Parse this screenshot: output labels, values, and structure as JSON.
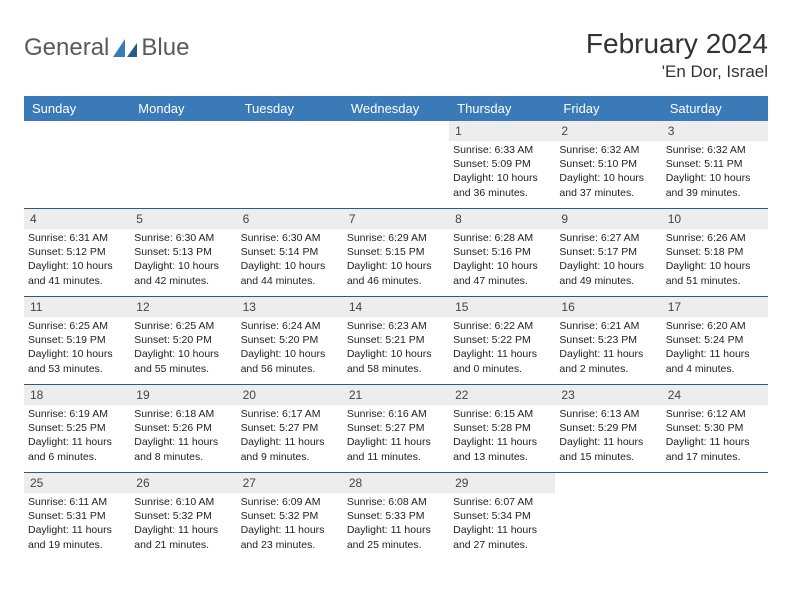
{
  "logo": {
    "word1": "General",
    "word2": "Blue"
  },
  "title": "February 2024",
  "location": "'En Dor, Israel",
  "colors": {
    "header_bg": "#3a7ab8",
    "header_text": "#ffffff",
    "daynum_bg": "#ededed",
    "border": "#2a5a8a",
    "text": "#222222",
    "page_bg": "#ffffff"
  },
  "weekdays": [
    "Sunday",
    "Monday",
    "Tuesday",
    "Wednesday",
    "Thursday",
    "Friday",
    "Saturday"
  ],
  "weeks": [
    [
      null,
      null,
      null,
      null,
      {
        "n": "1",
        "sunrise": "Sunrise: 6:33 AM",
        "sunset": "Sunset: 5:09 PM",
        "day1": "Daylight: 10 hours",
        "day2": "and 36 minutes."
      },
      {
        "n": "2",
        "sunrise": "Sunrise: 6:32 AM",
        "sunset": "Sunset: 5:10 PM",
        "day1": "Daylight: 10 hours",
        "day2": "and 37 minutes."
      },
      {
        "n": "3",
        "sunrise": "Sunrise: 6:32 AM",
        "sunset": "Sunset: 5:11 PM",
        "day1": "Daylight: 10 hours",
        "day2": "and 39 minutes."
      }
    ],
    [
      {
        "n": "4",
        "sunrise": "Sunrise: 6:31 AM",
        "sunset": "Sunset: 5:12 PM",
        "day1": "Daylight: 10 hours",
        "day2": "and 41 minutes."
      },
      {
        "n": "5",
        "sunrise": "Sunrise: 6:30 AM",
        "sunset": "Sunset: 5:13 PM",
        "day1": "Daylight: 10 hours",
        "day2": "and 42 minutes."
      },
      {
        "n": "6",
        "sunrise": "Sunrise: 6:30 AM",
        "sunset": "Sunset: 5:14 PM",
        "day1": "Daylight: 10 hours",
        "day2": "and 44 minutes."
      },
      {
        "n": "7",
        "sunrise": "Sunrise: 6:29 AM",
        "sunset": "Sunset: 5:15 PM",
        "day1": "Daylight: 10 hours",
        "day2": "and 46 minutes."
      },
      {
        "n": "8",
        "sunrise": "Sunrise: 6:28 AM",
        "sunset": "Sunset: 5:16 PM",
        "day1": "Daylight: 10 hours",
        "day2": "and 47 minutes."
      },
      {
        "n": "9",
        "sunrise": "Sunrise: 6:27 AM",
        "sunset": "Sunset: 5:17 PM",
        "day1": "Daylight: 10 hours",
        "day2": "and 49 minutes."
      },
      {
        "n": "10",
        "sunrise": "Sunrise: 6:26 AM",
        "sunset": "Sunset: 5:18 PM",
        "day1": "Daylight: 10 hours",
        "day2": "and 51 minutes."
      }
    ],
    [
      {
        "n": "11",
        "sunrise": "Sunrise: 6:25 AM",
        "sunset": "Sunset: 5:19 PM",
        "day1": "Daylight: 10 hours",
        "day2": "and 53 minutes."
      },
      {
        "n": "12",
        "sunrise": "Sunrise: 6:25 AM",
        "sunset": "Sunset: 5:20 PM",
        "day1": "Daylight: 10 hours",
        "day2": "and 55 minutes."
      },
      {
        "n": "13",
        "sunrise": "Sunrise: 6:24 AM",
        "sunset": "Sunset: 5:20 PM",
        "day1": "Daylight: 10 hours",
        "day2": "and 56 minutes."
      },
      {
        "n": "14",
        "sunrise": "Sunrise: 6:23 AM",
        "sunset": "Sunset: 5:21 PM",
        "day1": "Daylight: 10 hours",
        "day2": "and 58 minutes."
      },
      {
        "n": "15",
        "sunrise": "Sunrise: 6:22 AM",
        "sunset": "Sunset: 5:22 PM",
        "day1": "Daylight: 11 hours",
        "day2": "and 0 minutes."
      },
      {
        "n": "16",
        "sunrise": "Sunrise: 6:21 AM",
        "sunset": "Sunset: 5:23 PM",
        "day1": "Daylight: 11 hours",
        "day2": "and 2 minutes."
      },
      {
        "n": "17",
        "sunrise": "Sunrise: 6:20 AM",
        "sunset": "Sunset: 5:24 PM",
        "day1": "Daylight: 11 hours",
        "day2": "and 4 minutes."
      }
    ],
    [
      {
        "n": "18",
        "sunrise": "Sunrise: 6:19 AM",
        "sunset": "Sunset: 5:25 PM",
        "day1": "Daylight: 11 hours",
        "day2": "and 6 minutes."
      },
      {
        "n": "19",
        "sunrise": "Sunrise: 6:18 AM",
        "sunset": "Sunset: 5:26 PM",
        "day1": "Daylight: 11 hours",
        "day2": "and 8 minutes."
      },
      {
        "n": "20",
        "sunrise": "Sunrise: 6:17 AM",
        "sunset": "Sunset: 5:27 PM",
        "day1": "Daylight: 11 hours",
        "day2": "and 9 minutes."
      },
      {
        "n": "21",
        "sunrise": "Sunrise: 6:16 AM",
        "sunset": "Sunset: 5:27 PM",
        "day1": "Daylight: 11 hours",
        "day2": "and 11 minutes."
      },
      {
        "n": "22",
        "sunrise": "Sunrise: 6:15 AM",
        "sunset": "Sunset: 5:28 PM",
        "day1": "Daylight: 11 hours",
        "day2": "and 13 minutes."
      },
      {
        "n": "23",
        "sunrise": "Sunrise: 6:13 AM",
        "sunset": "Sunset: 5:29 PM",
        "day1": "Daylight: 11 hours",
        "day2": "and 15 minutes."
      },
      {
        "n": "24",
        "sunrise": "Sunrise: 6:12 AM",
        "sunset": "Sunset: 5:30 PM",
        "day1": "Daylight: 11 hours",
        "day2": "and 17 minutes."
      }
    ],
    [
      {
        "n": "25",
        "sunrise": "Sunrise: 6:11 AM",
        "sunset": "Sunset: 5:31 PM",
        "day1": "Daylight: 11 hours",
        "day2": "and 19 minutes."
      },
      {
        "n": "26",
        "sunrise": "Sunrise: 6:10 AM",
        "sunset": "Sunset: 5:32 PM",
        "day1": "Daylight: 11 hours",
        "day2": "and 21 minutes."
      },
      {
        "n": "27",
        "sunrise": "Sunrise: 6:09 AM",
        "sunset": "Sunset: 5:32 PM",
        "day1": "Daylight: 11 hours",
        "day2": "and 23 minutes."
      },
      {
        "n": "28",
        "sunrise": "Sunrise: 6:08 AM",
        "sunset": "Sunset: 5:33 PM",
        "day1": "Daylight: 11 hours",
        "day2": "and 25 minutes."
      },
      {
        "n": "29",
        "sunrise": "Sunrise: 6:07 AM",
        "sunset": "Sunset: 5:34 PM",
        "day1": "Daylight: 11 hours",
        "day2": "and 27 minutes."
      },
      null,
      null
    ]
  ]
}
